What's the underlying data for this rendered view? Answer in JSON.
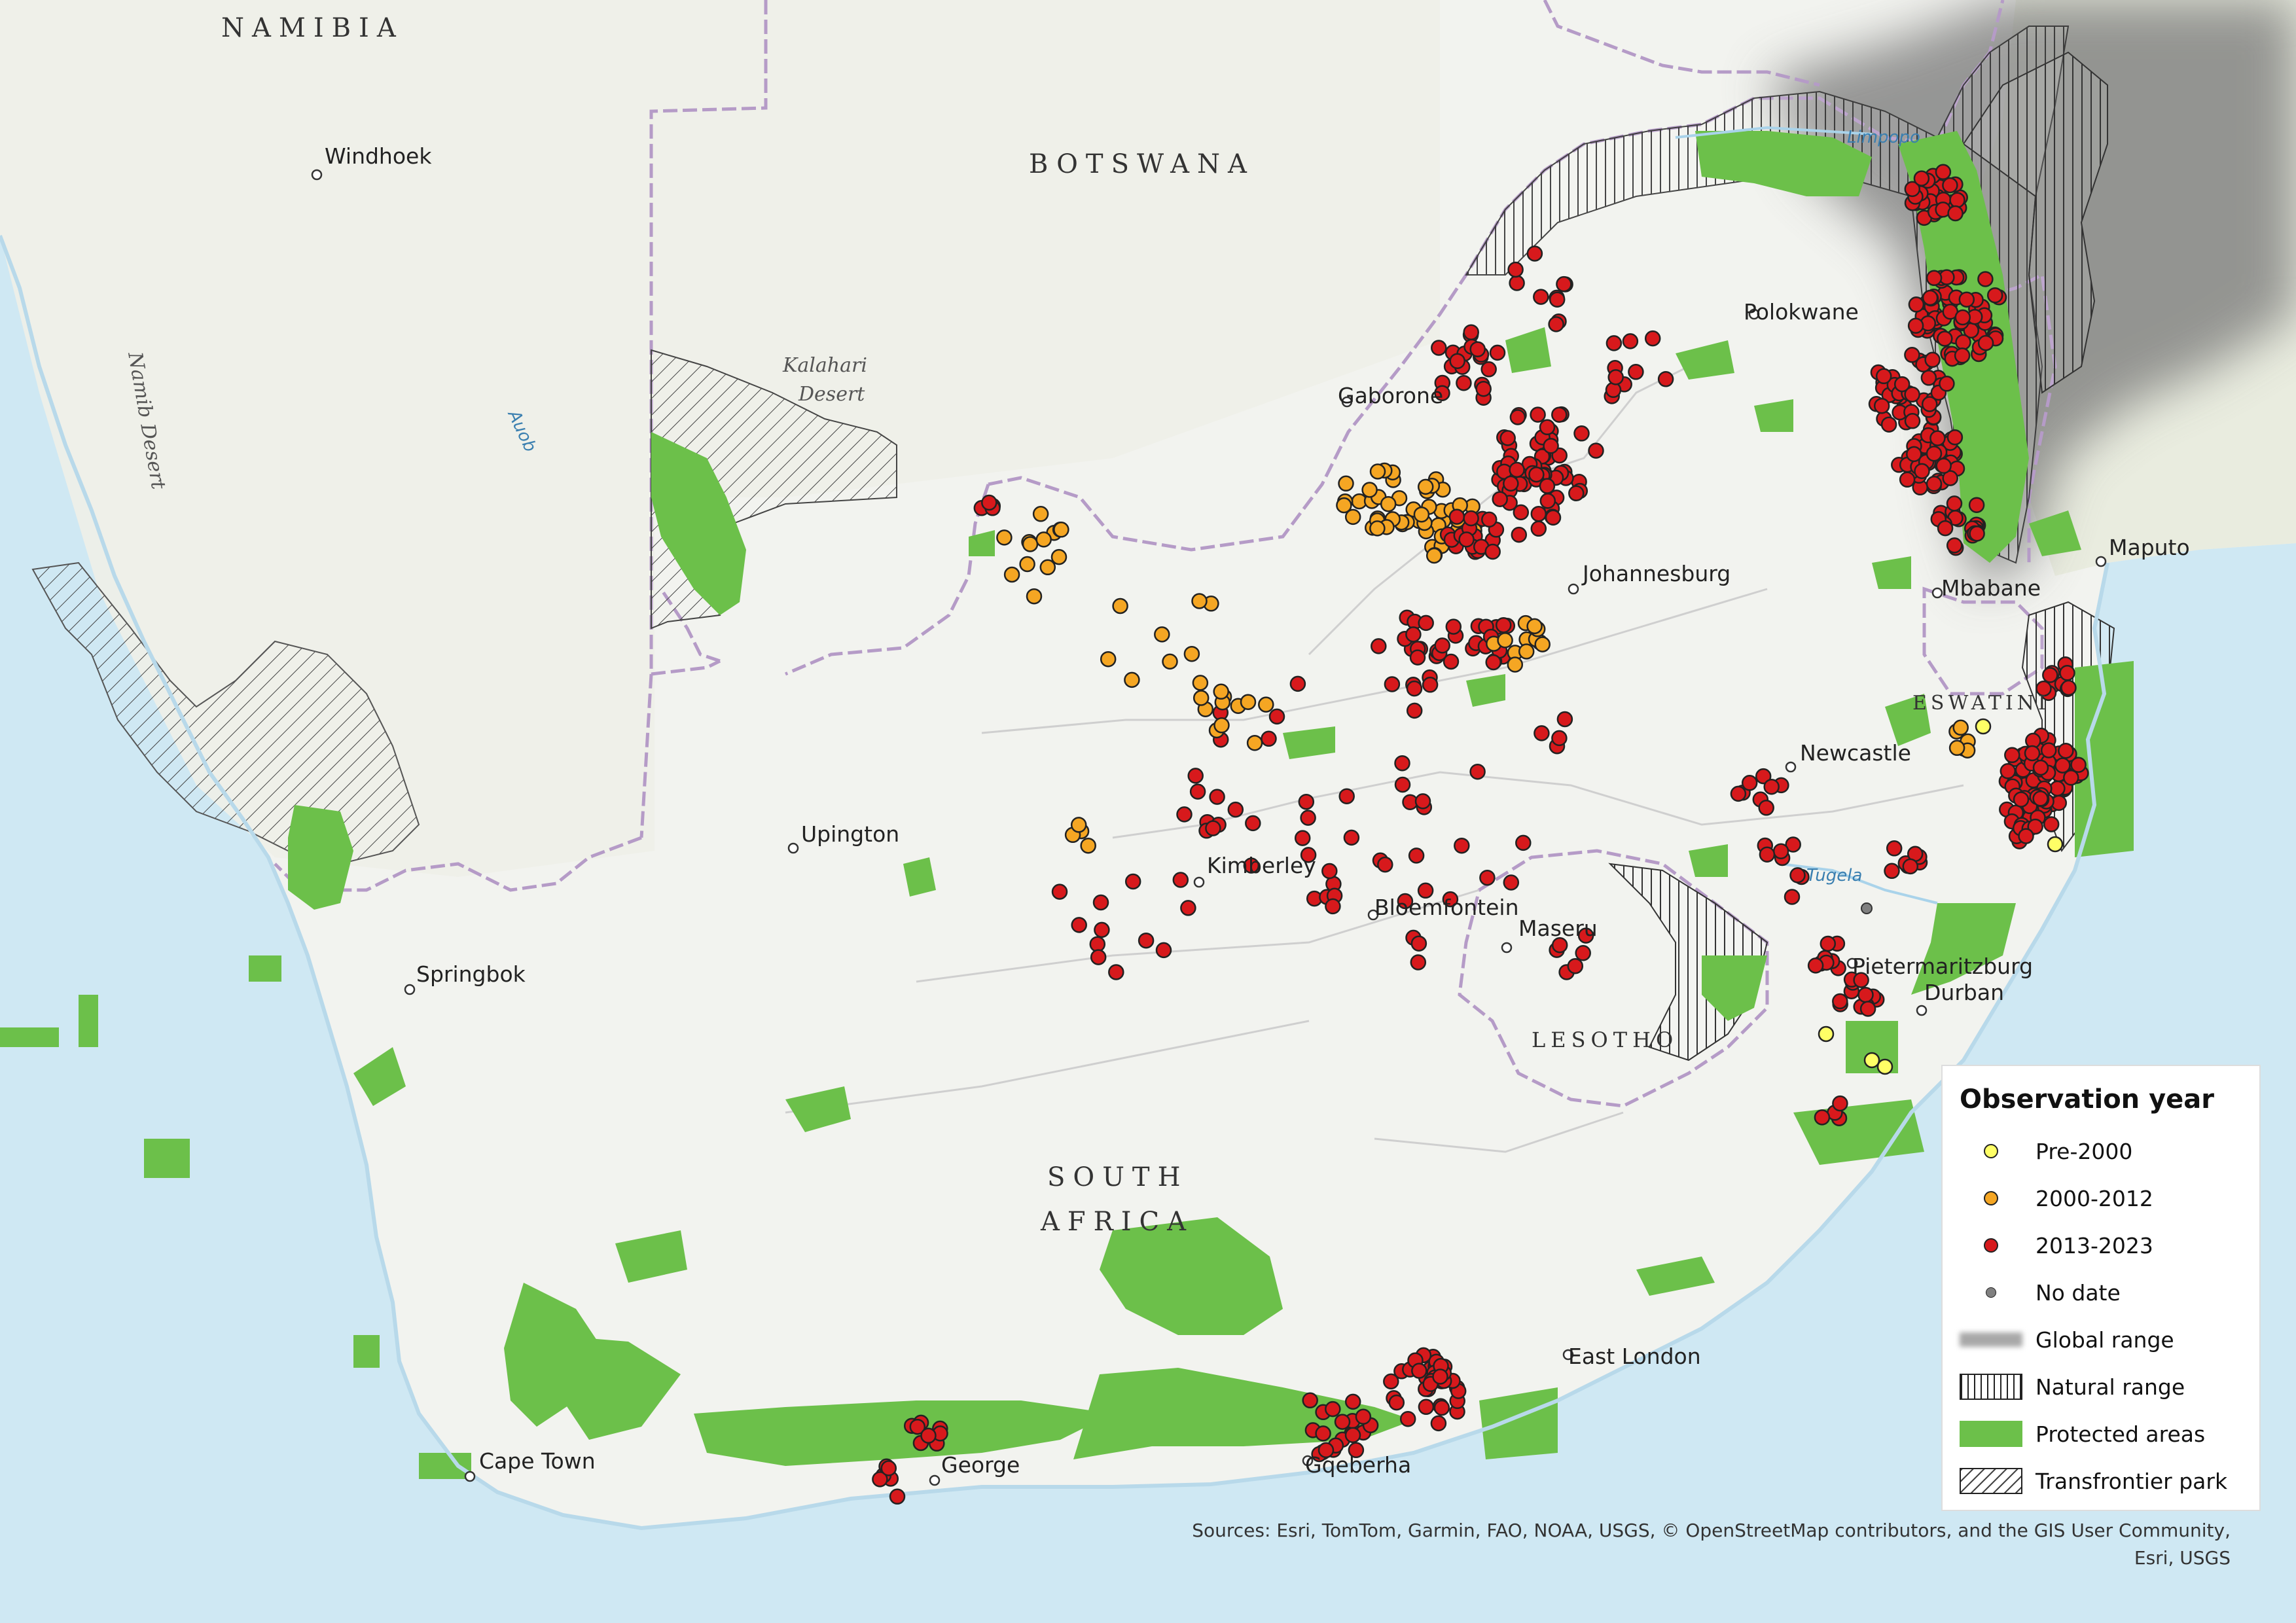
{
  "countries": [
    {
      "name": "NAMIBIA"
    },
    {
      "name": "BOTSWANA"
    },
    {
      "name": "SOUTH"
    },
    {
      "name": "AFRICA"
    },
    {
      "name": "LESOTHO"
    },
    {
      "name": "ESWATINI"
    }
  ],
  "cities": [
    {
      "name": "Windhoek"
    },
    {
      "name": "Gaborone"
    },
    {
      "name": "Polokwane"
    },
    {
      "name": "Johannesburg"
    },
    {
      "name": "Maputo"
    },
    {
      "name": "Mbabane"
    },
    {
      "name": "Newcastle"
    },
    {
      "name": "Upington"
    },
    {
      "name": "Kimberley"
    },
    {
      "name": "Bloemfontein"
    },
    {
      "name": "Maseru"
    },
    {
      "name": "Pietermaritzburg"
    },
    {
      "name": "Durban"
    },
    {
      "name": "Springbok"
    },
    {
      "name": "East London"
    },
    {
      "name": "Cape Town"
    },
    {
      "name": "George"
    },
    {
      "name": "Gqeberha"
    }
  ],
  "natural_features": [
    {
      "name": "Kalahari"
    },
    {
      "name": "Desert"
    },
    {
      "name": "Namib Desert"
    },
    {
      "name": "Auob"
    },
    {
      "name": "Limpopo"
    },
    {
      "name": "Tugela"
    }
  ],
  "colors": {
    "ocean": "#cfe8f3",
    "land": "#f2f3ef",
    "protected": "#6cc04a",
    "pre2000": "#ffff66",
    "y2000_2012": "#f5a623",
    "y2013_2023": "#d7191c",
    "nodate": "#808080",
    "global_range": "#7a7a7a"
  },
  "legend": {
    "title": "Observation year",
    "items": [
      {
        "label": "Pre-2000",
        "symbol": "dot",
        "color": "#ffff66"
      },
      {
        "label": "2000-2012",
        "symbol": "dot",
        "color": "#f5a623"
      },
      {
        "label": "2013-2023",
        "symbol": "dot",
        "color": "#d7191c"
      },
      {
        "label": "No date",
        "symbol": "small-dot",
        "color": "#808080"
      },
      {
        "label": "Global range",
        "symbol": "blur-band",
        "color": "#9a9a9a"
      },
      {
        "label": "Natural range",
        "symbol": "vertical-hatch",
        "color": "#222"
      },
      {
        "label": "Protected areas",
        "symbol": "fill",
        "color": "#6cc04a"
      },
      {
        "label": "Transfrontier park",
        "symbol": "diagonal-hatch",
        "color": "#222"
      }
    ]
  },
  "sources": {
    "line1": "Sources: Esri, TomTom, Garmin, FAO, NOAA, USGS, © OpenStreetMap contributors, and the GIS User Community,",
    "line2": "Esri, USGS"
  }
}
